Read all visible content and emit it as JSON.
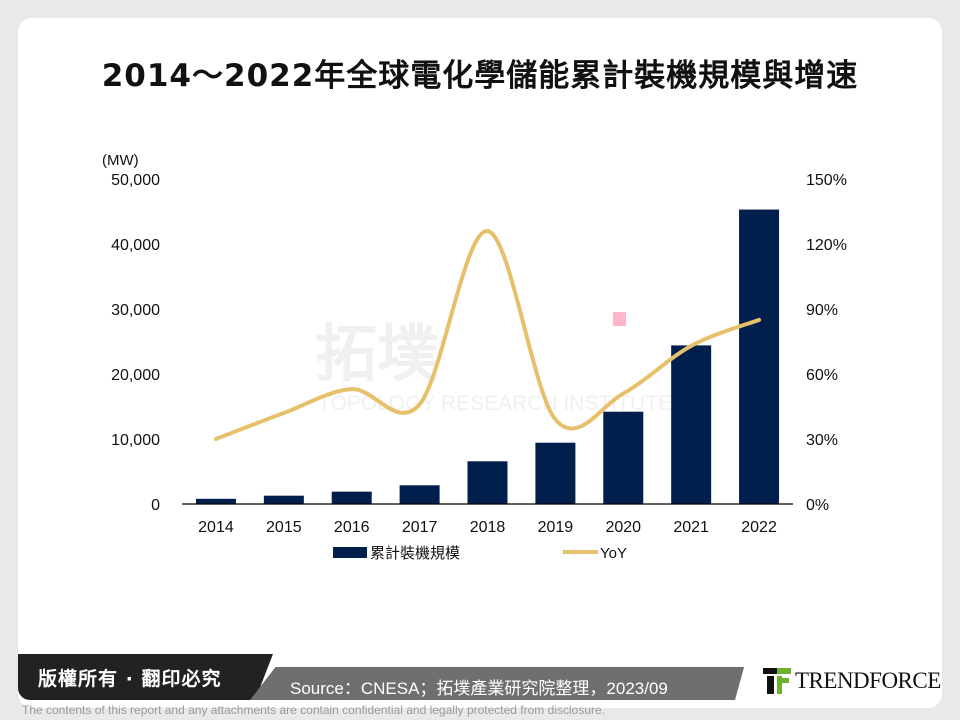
{
  "title": "2014～2022年全球電化學儲能累計裝機規模與增速",
  "chart_data": {
    "type": "bar+line",
    "title": "2014～2022年全球電化學儲能累計裝機規模與增速",
    "y_unit_label": "(MW)",
    "categories": [
      "2014",
      "2015",
      "2016",
      "2017",
      "2018",
      "2019",
      "2020",
      "2021",
      "2022"
    ],
    "series": [
      {
        "name": "累計裝機規模",
        "type": "bar",
        "axis": "left",
        "color": "#001f4d",
        "values": [
          800,
          1280,
          1900,
          2880,
          6570,
          9430,
          14200,
          24400,
          45300
        ]
      },
      {
        "name": "YoY",
        "type": "line",
        "axis": "right",
        "color": "#e6c06a",
        "smooth": true,
        "values": [
          30,
          42,
          53,
          46,
          126,
          39,
          51,
          73,
          85
        ]
      }
    ],
    "left_axis": {
      "ylim": [
        0,
        50000
      ],
      "ticks": [
        "0",
        "10,000",
        "20,000",
        "30,000",
        "40,000",
        "50,000"
      ]
    },
    "right_axis": {
      "ylim": [
        0,
        150
      ],
      "ticks": [
        "0%",
        "30%",
        "60%",
        "90%",
        "120%",
        "150%"
      ]
    },
    "grid": false,
    "legend": "bottom"
  },
  "footer": {
    "copyright": "版權所有 · 翻印必究",
    "source": "Source：CNESA；拓墣產業研究院整理，2023/09",
    "logo": "TRENDFORCE",
    "disclaimer": "The contents of this report and any attachments are contain confidential and legally protected from disclosure."
  }
}
